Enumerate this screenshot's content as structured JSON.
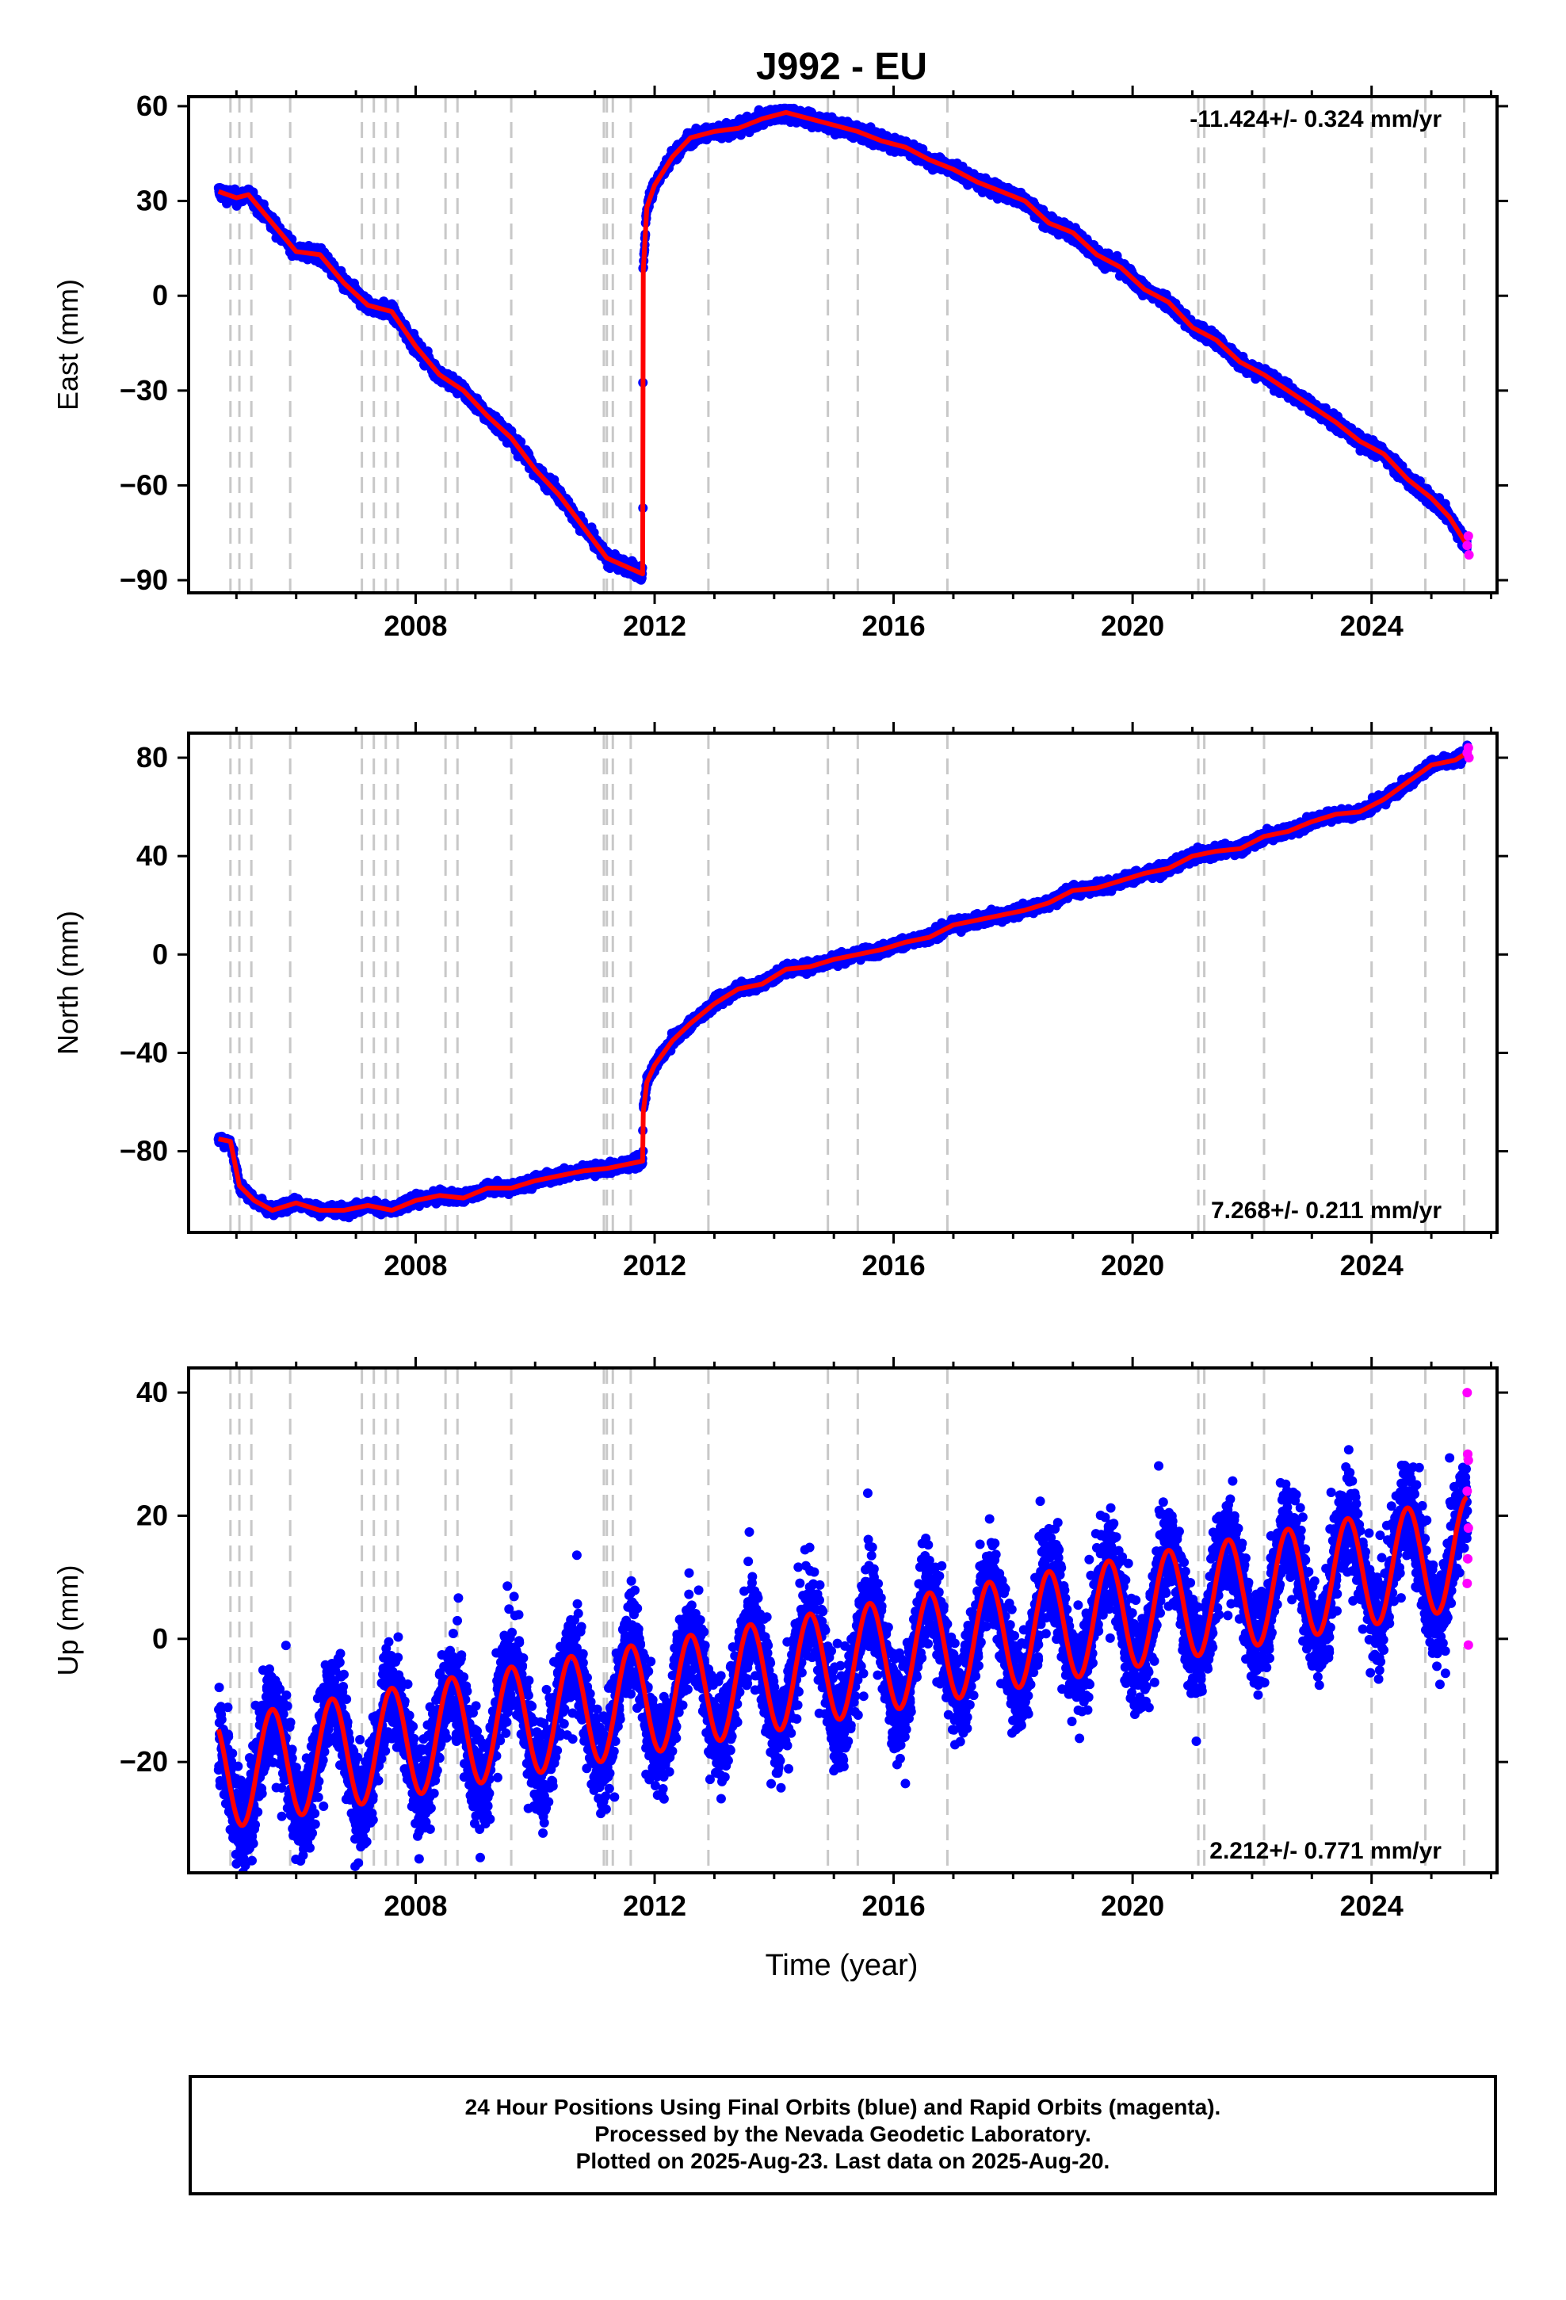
{
  "title": "J992 - EU",
  "xlabel": "Time (year)",
  "footer": {
    "line1": "24 Hour Positions Using Final Orbits (blue) and Rapid Orbits (magenta).",
    "line2": "Processed by the Nevada Geodetic Laboratory.",
    "line3": "Plotted on 2025-Aug-23. Last data on 2025-Aug-20."
  },
  "colors": {
    "final": "#0000ff",
    "rapid": "#ff00ff",
    "model": "#ff0000",
    "event": "#c8c8c8"
  },
  "chart_data": [
    {
      "type": "scatter",
      "panel": "east",
      "ylabel": "East (mm)",
      "rate_label": "-11.424+/- 0.324 mm/yr",
      "rate_position": "top-right",
      "xlim": [
        2004.2,
        2026.1
      ],
      "ylim": [
        -94,
        63
      ],
      "yticks": [
        -90,
        -60,
        -30,
        0,
        30,
        60
      ],
      "xticks": [
        2008,
        2012,
        2016,
        2020,
        2024
      ],
      "event_lines": [
        2004.9,
        2005.05,
        2005.25,
        2005.9,
        2007.1,
        2007.3,
        2007.5,
        2007.7,
        2008.5,
        2008.7,
        2009.6,
        2011.15,
        2011.2,
        2011.3,
        2011.6,
        2012.9,
        2014.9,
        2015.4,
        2016.9,
        2021.1,
        2021.2,
        2022.2,
        2024.0,
        2024.9,
        2025.55
      ],
      "model": [
        [
          2004.7,
          33
        ],
        [
          2005.0,
          31
        ],
        [
          2005.2,
          32
        ],
        [
          2005.6,
          23
        ],
        [
          2006.0,
          14
        ],
        [
          2006.4,
          13
        ],
        [
          2006.8,
          4
        ],
        [
          2007.2,
          -3
        ],
        [
          2007.6,
          -5
        ],
        [
          2008.0,
          -16
        ],
        [
          2008.4,
          -25
        ],
        [
          2008.8,
          -30
        ],
        [
          2009.2,
          -38
        ],
        [
          2009.6,
          -45
        ],
        [
          2010.0,
          -55
        ],
        [
          2010.4,
          -63
        ],
        [
          2010.8,
          -73
        ],
        [
          2011.2,
          -83
        ],
        [
          2011.8,
          -88
        ],
        [
          2011.81,
          8
        ],
        [
          2011.87,
          28
        ],
        [
          2012.0,
          35
        ],
        [
          2012.3,
          44
        ],
        [
          2012.6,
          50
        ],
        [
          2013.0,
          52
        ],
        [
          2013.4,
          53
        ],
        [
          2013.8,
          56
        ],
        [
          2014.2,
          58
        ],
        [
          2014.6,
          56
        ],
        [
          2015.0,
          54
        ],
        [
          2015.4,
          52
        ],
        [
          2015.8,
          49
        ],
        [
          2016.2,
          47
        ],
        [
          2016.6,
          43
        ],
        [
          2017.0,
          40
        ],
        [
          2017.4,
          36
        ],
        [
          2017.8,
          33
        ],
        [
          2018.2,
          30
        ],
        [
          2018.6,
          23
        ],
        [
          2019.0,
          20
        ],
        [
          2019.4,
          13
        ],
        [
          2019.8,
          9
        ],
        [
          2020.2,
          2
        ],
        [
          2020.6,
          -2
        ],
        [
          2021.0,
          -10
        ],
        [
          2021.4,
          -14
        ],
        [
          2021.8,
          -21
        ],
        [
          2022.2,
          -25
        ],
        [
          2022.6,
          -30
        ],
        [
          2023.0,
          -35
        ],
        [
          2023.4,
          -40
        ],
        [
          2023.8,
          -46
        ],
        [
          2024.2,
          -50
        ],
        [
          2024.6,
          -58
        ],
        [
          2025.0,
          -64
        ],
        [
          2025.3,
          -70
        ],
        [
          2025.6,
          -79
        ]
      ],
      "rapid": [
        [
          2025.6,
          -79
        ],
        [
          2025.62,
          -76
        ],
        [
          2025.63,
          -82
        ]
      ]
    },
    {
      "type": "scatter",
      "panel": "north",
      "ylabel": "North (mm)",
      "rate_label": "7.268+/- 0.211 mm/yr",
      "rate_position": "bottom-right",
      "xlim": [
        2004.2,
        2026.1
      ],
      "ylim": [
        -113,
        90
      ],
      "yticks": [
        -80,
        -40,
        0,
        40,
        80
      ],
      "xticks": [
        2008,
        2012,
        2016,
        2020,
        2024
      ],
      "event_lines": [
        2004.9,
        2005.05,
        2005.25,
        2005.9,
        2007.1,
        2007.3,
        2007.5,
        2007.7,
        2008.5,
        2008.7,
        2009.6,
        2011.15,
        2011.2,
        2011.3,
        2011.6,
        2012.9,
        2014.9,
        2015.4,
        2016.9,
        2021.1,
        2021.2,
        2022.2,
        2024.0,
        2024.9,
        2025.55
      ],
      "model": [
        [
          2004.7,
          -75
        ],
        [
          2004.9,
          -76
        ],
        [
          2005.05,
          -94
        ],
        [
          2005.3,
          -100
        ],
        [
          2005.6,
          -104
        ],
        [
          2006.0,
          -101
        ],
        [
          2006.4,
          -104
        ],
        [
          2006.8,
          -104
        ],
        [
          2007.2,
          -102
        ],
        [
          2007.6,
          -104
        ],
        [
          2008.0,
          -100
        ],
        [
          2008.4,
          -98
        ],
        [
          2008.8,
          -99
        ],
        [
          2009.2,
          -95
        ],
        [
          2009.6,
          -95
        ],
        [
          2010.0,
          -92
        ],
        [
          2010.4,
          -90
        ],
        [
          2010.8,
          -88
        ],
        [
          2011.2,
          -87
        ],
        [
          2011.6,
          -85
        ],
        [
          2011.8,
          -84
        ],
        [
          2011.81,
          -64
        ],
        [
          2011.87,
          -52
        ],
        [
          2012.0,
          -45
        ],
        [
          2012.3,
          -35
        ],
        [
          2012.6,
          -28
        ],
        [
          2013.0,
          -20
        ],
        [
          2013.4,
          -14
        ],
        [
          2013.8,
          -12
        ],
        [
          2014.2,
          -6
        ],
        [
          2014.6,
          -5
        ],
        [
          2015.0,
          -2
        ],
        [
          2015.4,
          0
        ],
        [
          2015.8,
          2
        ],
        [
          2016.2,
          5
        ],
        [
          2016.6,
          7
        ],
        [
          2017.0,
          12
        ],
        [
          2017.4,
          14
        ],
        [
          2017.8,
          16
        ],
        [
          2018.2,
          18
        ],
        [
          2018.6,
          21
        ],
        [
          2019.0,
          26
        ],
        [
          2019.4,
          27
        ],
        [
          2019.8,
          30
        ],
        [
          2020.2,
          33
        ],
        [
          2020.6,
          35
        ],
        [
          2021.0,
          40
        ],
        [
          2021.4,
          42
        ],
        [
          2021.8,
          43
        ],
        [
          2022.2,
          48
        ],
        [
          2022.6,
          50
        ],
        [
          2023.0,
          54
        ],
        [
          2023.4,
          57
        ],
        [
          2023.8,
          58
        ],
        [
          2024.2,
          63
        ],
        [
          2024.6,
          70
        ],
        [
          2025.0,
          77
        ],
        [
          2025.4,
          79
        ],
        [
          2025.6,
          82
        ]
      ],
      "rapid": [
        [
          2025.6,
          82
        ],
        [
          2025.62,
          84
        ],
        [
          2025.63,
          80
        ]
      ]
    },
    {
      "type": "scatter",
      "panel": "up",
      "ylabel": "Up (mm)",
      "rate_label": "2.212+/- 0.771 mm/yr",
      "rate_position": "bottom-right",
      "xlim": [
        2004.2,
        2026.1
      ],
      "ylim": [
        -38,
        44
      ],
      "yticks": [
        -20,
        0,
        20,
        40
      ],
      "xticks": [
        2008,
        2012,
        2016,
        2020,
        2024
      ],
      "event_lines": [
        2004.9,
        2005.05,
        2005.25,
        2005.9,
        2007.1,
        2007.3,
        2007.5,
        2007.7,
        2008.5,
        2008.7,
        2009.6,
        2011.15,
        2011.2,
        2011.3,
        2011.6,
        2012.9,
        2014.9,
        2015.4,
        2016.9,
        2021.1,
        2021.2,
        2022.2,
        2024.0,
        2024.9,
        2025.55
      ],
      "model_params": {
        "start": 2004.7,
        "end": 2025.6,
        "trend_start": -22,
        "trend_end": 14,
        "amplitude": 9,
        "phase_year": 0.35
      },
      "rapid": [
        [
          2025.6,
          40
        ],
        [
          2025.61,
          30
        ],
        [
          2025.62,
          29
        ],
        [
          2025.6,
          24
        ],
        [
          2025.62,
          18
        ],
        [
          2025.61,
          13
        ],
        [
          2025.6,
          9
        ],
        [
          2025.62,
          -1
        ]
      ]
    }
  ]
}
